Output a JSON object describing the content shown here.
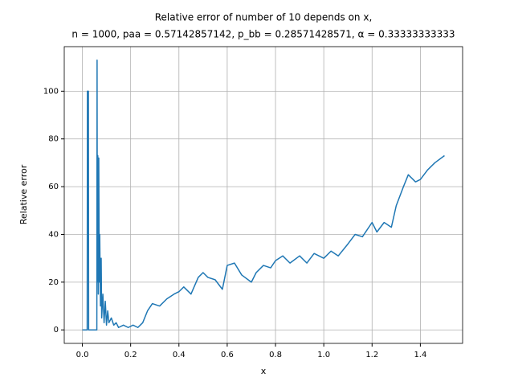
{
  "chart_data": {
    "type": "line",
    "title": "Relative error of number of 10 depends on x,",
    "subtitle": "n = 1000, paa = 0.57142857142, p_bb = 0.28571428571, α = 0.33333333333",
    "xlabel": "x",
    "ylabel": "Relative error",
    "x": [
      0,
      0.02,
      0.021,
      0.025,
      0.026,
      0.03,
      0.06,
      0.061,
      0.062,
      0.064,
      0.066,
      0.068,
      0.07,
      0.072,
      0.075,
      0.078,
      0.08,
      0.085,
      0.09,
      0.095,
      0.1,
      0.105,
      0.11,
      0.12,
      0.13,
      0.14,
      0.15,
      0.17,
      0.19,
      0.21,
      0.23,
      0.25,
      0.27,
      0.29,
      0.32,
      0.35,
      0.38,
      0.4,
      0.42,
      0.45,
      0.48,
      0.5,
      0.52,
      0.55,
      0.58,
      0.6,
      0.63,
      0.66,
      0.7,
      0.72,
      0.75,
      0.78,
      0.8,
      0.83,
      0.86,
      0.9,
      0.93,
      0.96,
      1.0,
      1.03,
      1.06,
      1.1,
      1.13,
      1.16,
      1.2,
      1.22,
      1.25,
      1.28,
      1.3,
      1.33,
      1.35,
      1.38,
      1.4,
      1.43,
      1.46,
      1.5
    ],
    "series": [
      {
        "color": "#1f77b4",
        "values": [
          0,
          0,
          100,
          100,
          0,
          0,
          0,
          113,
          20,
          73,
          15,
          72,
          20,
          40,
          10,
          30,
          5,
          15,
          3,
          12,
          2,
          8,
          3,
          5,
          2,
          3,
          1,
          2,
          1,
          2,
          1,
          3,
          8,
          11,
          10,
          13,
          15,
          16,
          18,
          15,
          22,
          24,
          22,
          21,
          17,
          27,
          28,
          23,
          20,
          24,
          27,
          26,
          29,
          31,
          28,
          31,
          28,
          32,
          30,
          33,
          31,
          36,
          40,
          39,
          45,
          41,
          45,
          43,
          52,
          60,
          65,
          62,
          63,
          67,
          70,
          73
        ]
      }
    ],
    "xlim": [
      -0.075,
      1.575
    ],
    "xticks": [
      {
        "value": 0,
        "label": "0.0"
      },
      {
        "value": 0.2,
        "label": "0.2"
      },
      {
        "value": 0.4,
        "label": "0.4"
      },
      {
        "value": 0.6,
        "label": "0.6"
      },
      {
        "value": 0.8,
        "label": "0.8"
      },
      {
        "value": 1,
        "label": "1.0"
      },
      {
        "value": 1.2,
        "label": "1.2"
      },
      {
        "value": 1.4,
        "label": "1.4"
      }
    ],
    "ylim": [
      -5.65,
      118.65
    ],
    "yticks": [
      0,
      20,
      40,
      60,
      80,
      100
    ],
    "grid": true
  }
}
